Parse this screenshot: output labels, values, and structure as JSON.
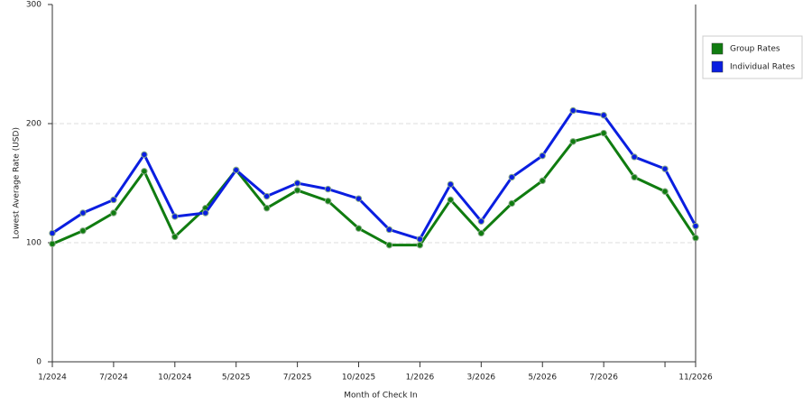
{
  "chart_data": {
    "type": "line",
    "x_label": "Month of Check In",
    "y_label": "Lowest Average Rate (USD)",
    "categories": [
      "1/2024",
      null,
      "7/2024",
      null,
      "10/2024",
      null,
      "5/2025",
      null,
      "7/2025",
      null,
      "10/2025",
      null,
      "1/2026",
      null,
      "3/2026",
      null,
      "5/2026",
      null,
      "7/2026",
      null,
      null,
      "11/2026"
    ],
    "series": [
      {
        "name": "Group Rates",
        "color": "#107c10",
        "values": [
          99,
          110,
          125,
          160,
          105,
          129,
          161,
          129,
          144,
          135,
          112,
          98,
          98,
          136,
          108,
          133,
          152,
          185,
          192,
          155,
          143,
          104
        ]
      },
      {
        "name": "Individual Rates",
        "color": "#0a1ee0",
        "values": [
          108,
          125,
          136,
          174,
          122,
          125,
          161,
          139,
          150,
          145,
          137,
          111,
          103,
          149,
          118,
          155,
          173,
          211,
          207,
          172,
          162,
          114
        ]
      }
    ],
    "ylim": [
      0,
      300
    ],
    "yticks": [
      0,
      100,
      200,
      300
    ],
    "grid": true,
    "legend": "right"
  }
}
